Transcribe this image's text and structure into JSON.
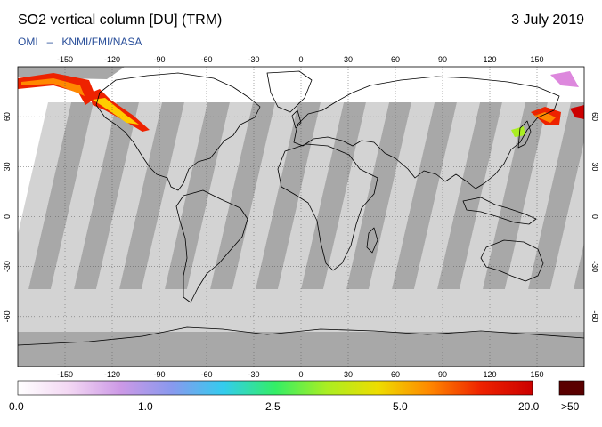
{
  "header": {
    "title": "SO2 vertical column [DU] (TRM)",
    "date": "3 July 2019",
    "credit_left": "OMI",
    "credit_sep": "–",
    "credit_right": "KNMI/FMI/NASA"
  },
  "map": {
    "lon_ticks": [
      "-150",
      "-120",
      "-90",
      "-60",
      "-30",
      "0",
      "30",
      "60",
      "90",
      "120",
      "150"
    ],
    "lat_ticks": [
      "60",
      "30",
      "0",
      "-30",
      "-60"
    ],
    "colors": {
      "no_data": "#d3d3d3",
      "orbit_gap": "#a8a8a8",
      "background": "#ffffff",
      "coastline": "#000000",
      "gridline": "#555555"
    }
  },
  "colorbar": {
    "labels": [
      "0.0",
      "1.0",
      "2.5",
      "5.0",
      "20.0"
    ],
    "overflow_label": ">50",
    "overflow_color": "#5a0000",
    "stops": [
      "#ffffff",
      "#f3d7f3",
      "#cc99e6",
      "#8899ee",
      "#33ccee",
      "#33ee66",
      "#aaee22",
      "#eedd00",
      "#ff8800",
      "#ee2200",
      "#cc0000"
    ]
  }
}
